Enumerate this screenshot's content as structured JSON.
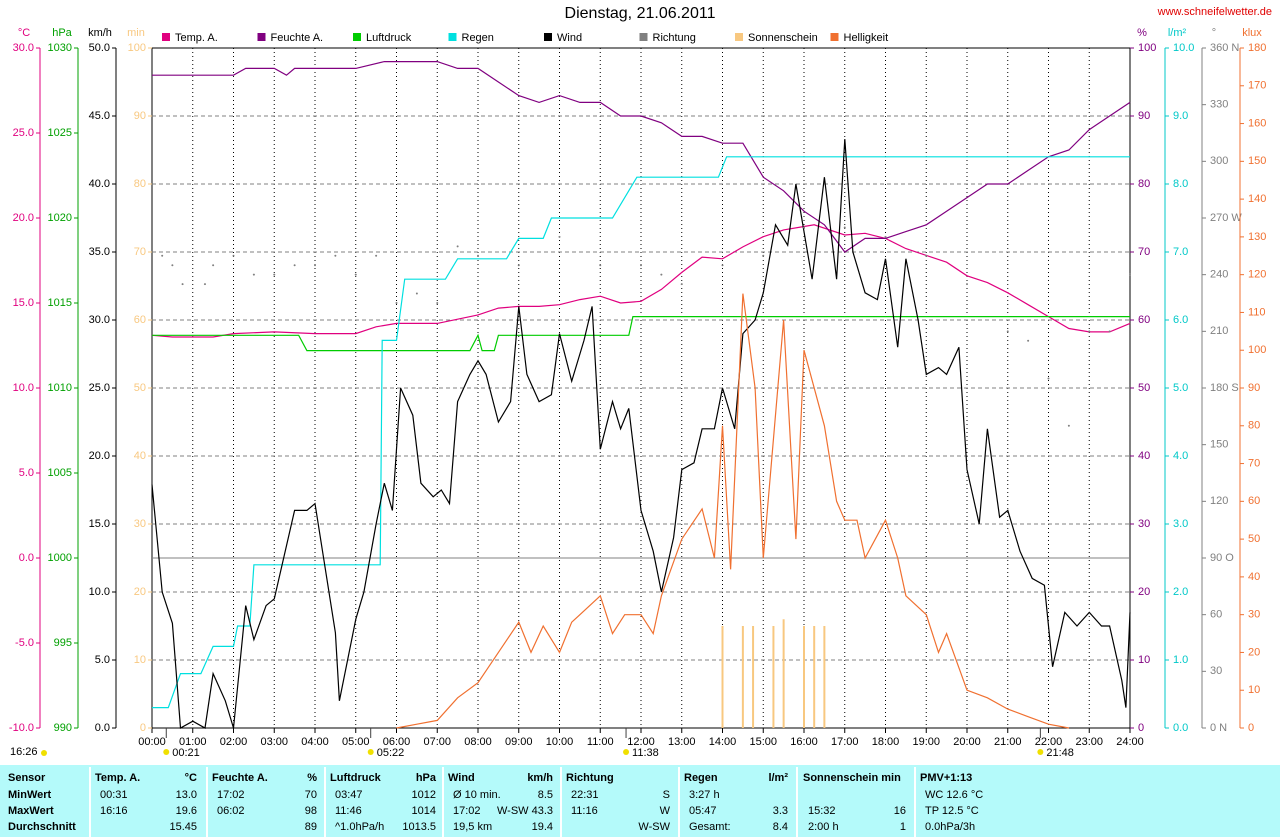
{
  "chart_data": {
    "type": "line",
    "title": "Dienstag, 21.06.2011",
    "source": "www.schneifelwetter.de",
    "xlim": [
      0,
      24
    ],
    "xticks": [
      {
        "value": 0,
        "label": "00:00"
      },
      {
        "value": 1,
        "label": "01:00"
      },
      {
        "value": 2,
        "label": "02:00"
      },
      {
        "value": 3,
        "label": "03:00"
      },
      {
        "value": 4,
        "label": "04:00"
      },
      {
        "value": 5,
        "label": "05:00"
      },
      {
        "value": 6,
        "label": "06:00"
      },
      {
        "value": 7,
        "label": "07:00"
      },
      {
        "value": 8,
        "label": "08:00"
      },
      {
        "value": 9,
        "label": "09:00"
      },
      {
        "value": 10,
        "label": "10:00"
      },
      {
        "value": 11,
        "label": "11:00"
      },
      {
        "value": 12,
        "label": "12:00"
      },
      {
        "value": 13,
        "label": "13:00"
      },
      {
        "value": 14,
        "label": "14:00"
      },
      {
        "value": 15,
        "label": "15:00"
      },
      {
        "value": 16,
        "label": "16:00"
      },
      {
        "value": 17,
        "label": "17:00"
      },
      {
        "value": 18,
        "label": "18:00"
      },
      {
        "value": 19,
        "label": "19:00"
      },
      {
        "value": 20,
        "label": "20:00"
      },
      {
        "value": 21,
        "label": "21:00"
      },
      {
        "value": 22,
        "label": "22:00"
      },
      {
        "value": 23,
        "label": "23:00"
      },
      {
        "value": 24,
        "label": "24:00"
      }
    ],
    "axes": [
      {
        "id": "temp",
        "unit": "°C",
        "side": "left",
        "color": "#e0007f",
        "zero_line": true,
        "lim": [
          -10,
          30
        ],
        "ticks": [
          {
            "value": -10,
            "label": "-10.0"
          },
          {
            "value": -5,
            "label": "-5.0"
          },
          {
            "value": 0,
            "label": "0.0"
          },
          {
            "value": 5,
            "label": "5.0"
          },
          {
            "value": 10,
            "label": "10.0"
          },
          {
            "value": 15,
            "label": "15.0"
          },
          {
            "value": 20,
            "label": "20.0"
          },
          {
            "value": 25,
            "label": "25.0"
          },
          {
            "value": 30,
            "label": "30.0"
          }
        ]
      },
      {
        "id": "hpa",
        "unit": "hPa",
        "side": "left",
        "color": "#00a000",
        "lim": [
          990,
          1030
        ],
        "ticks": [
          990,
          995,
          1000,
          1005,
          1010,
          1015,
          1020,
          1025,
          1030
        ]
      },
      {
        "id": "kmh",
        "unit": "km/h",
        "side": "left",
        "color": "#000000",
        "grid": true,
        "lim": [
          0,
          50
        ],
        "ticks": [
          {
            "value": 0,
            "label": "0.0"
          },
          {
            "value": 5,
            "label": "5.0"
          },
          {
            "value": 10,
            "label": "10.0"
          },
          {
            "value": 15,
            "label": "15.0"
          },
          {
            "value": 20,
            "label": "20.0"
          },
          {
            "value": 25,
            "label": "25.0"
          },
          {
            "value": 30,
            "label": "30.0"
          },
          {
            "value": 35,
            "label": "35.0"
          },
          {
            "value": 40,
            "label": "40.0"
          },
          {
            "value": 45,
            "label": "45.0"
          },
          {
            "value": 50,
            "label": "50.0"
          }
        ]
      },
      {
        "id": "min",
        "unit": "min",
        "side": "left",
        "color": "#f8c880",
        "lim": [
          0,
          100
        ],
        "ticks": [
          0,
          10,
          20,
          30,
          40,
          50,
          60,
          70,
          80,
          90,
          100
        ]
      },
      {
        "id": "pct",
        "unit": "%",
        "side": "right",
        "color": "#800080",
        "lim": [
          0,
          100
        ],
        "ticks": [
          0,
          10,
          20,
          30,
          40,
          50,
          60,
          70,
          80,
          90,
          100
        ]
      },
      {
        "id": "lm2",
        "unit": "l/m²",
        "side": "right",
        "color": "#00c8c8",
        "lim": [
          0,
          10
        ],
        "ticks": [
          {
            "value": 0,
            "label": "0.0"
          },
          {
            "value": 1,
            "label": "1.0"
          },
          {
            "value": 2,
            "label": "2.0"
          },
          {
            "value": 3,
            "label": "3.0"
          },
          {
            "value": 4,
            "label": "4.0"
          },
          {
            "value": 5,
            "label": "5.0"
          },
          {
            "value": 6,
            "label": "6.0"
          },
          {
            "value": 7,
            "label": "7.0"
          },
          {
            "value": 8,
            "label": "8.0"
          },
          {
            "value": 9,
            "label": "9.0"
          },
          {
            "value": 10,
            "label": "10.0"
          }
        ]
      },
      {
        "id": "deg",
        "unit": "°",
        "side": "right",
        "color": "#808080",
        "lim": [
          0,
          360
        ],
        "ticks": [
          {
            "value": 0,
            "label": "0 N"
          },
          30,
          60,
          {
            "value": 90,
            "label": "90 O"
          },
          120,
          150,
          {
            "value": 180,
            "label": "180 S"
          },
          210,
          240,
          {
            "value": 270,
            "label": "270 W"
          },
          300,
          330,
          {
            "value": 360,
            "label": "360 N"
          }
        ]
      },
      {
        "id": "klux",
        "unit": "klux",
        "side": "right",
        "color": "#f07030",
        "lim": [
          0,
          180
        ],
        "ticks": [
          0,
          10,
          20,
          30,
          40,
          50,
          60,
          70,
          80,
          90,
          100,
          110,
          120,
          130,
          140,
          150,
          160,
          170,
          180
        ]
      }
    ],
    "series": [
      {
        "name": "Temp. A.",
        "color": "#e0007f",
        "axis": "temp",
        "style": "line",
        "x": [
          0,
          0.5,
          1.5,
          2,
          3,
          4,
          5,
          5.5,
          6,
          7,
          8,
          8.5,
          9,
          9.5,
          10,
          10.5,
          11,
          11.5,
          12,
          12.5,
          13,
          13.5,
          14,
          14.5,
          15,
          15.5,
          16,
          16.25,
          17,
          17.5,
          18,
          18.5,
          19,
          19.5,
          20,
          20.5,
          21,
          21.5,
          22,
          22.5,
          23,
          23.5,
          24
        ],
        "values": [
          13.1,
          13.0,
          13.0,
          13.2,
          13.3,
          13.2,
          13.2,
          13.6,
          13.8,
          13.8,
          14.3,
          14.7,
          14.8,
          14.8,
          14.9,
          15.2,
          15.4,
          15.0,
          15.1,
          15.8,
          16.8,
          17.7,
          17.6,
          18.3,
          18.9,
          19.3,
          19.5,
          19.6,
          19.0,
          19.1,
          18.8,
          18.2,
          17.8,
          17.4,
          16.6,
          16.2,
          15.6,
          14.9,
          14.2,
          13.5,
          13.3,
          13.3,
          13.8
        ]
      },
      {
        "name": "Feuchte A.",
        "color": "#800080",
        "axis": "pct",
        "style": "line",
        "x": [
          0,
          2,
          2.3,
          3,
          3.3,
          3.5,
          5,
          5.7,
          7,
          7.5,
          8,
          8.5,
          9,
          9.5,
          10,
          10.5,
          11,
          11.5,
          12,
          12.5,
          13,
          13.5,
          14,
          14.5,
          15,
          15.5,
          16,
          16.5,
          17,
          17.5,
          18,
          18.5,
          19,
          19.5,
          20,
          20.5,
          21,
          21.5,
          22,
          22.5,
          23,
          23.5,
          24
        ],
        "values": [
          96,
          96,
          97,
          97,
          96,
          97,
          97,
          98,
          98,
          97,
          97,
          95,
          93,
          92,
          93,
          92,
          92,
          90,
          90,
          89,
          87,
          87,
          86,
          86,
          81,
          79,
          76,
          74,
          70,
          72,
          72,
          73,
          74,
          76,
          78,
          80,
          80,
          82,
          84,
          85,
          88,
          90,
          92
        ]
      },
      {
        "name": "Luftdruck",
        "color": "#00cc00",
        "axis": "hpa",
        "style": "line",
        "x": [
          0,
          3.6,
          3.8,
          7.8,
          8,
          8.1,
          8.4,
          8.5,
          11.7,
          11.8,
          24
        ],
        "values": [
          1013.1,
          1013.1,
          1012.2,
          1012.2,
          1013.1,
          1012.2,
          1012.2,
          1013.1,
          1013.1,
          1014.2,
          1014.2
        ]
      },
      {
        "name": "Regen",
        "color": "#00e0e0",
        "axis": "lm2",
        "style": "line",
        "x": [
          0,
          0.4,
          0.7,
          1.2,
          1.5,
          2,
          2.1,
          2.4,
          2.5,
          5.6,
          5.65,
          6.0,
          6.2,
          7.2,
          7.5,
          8.7,
          9.0,
          9.6,
          9.8,
          11.3,
          11.9,
          13.9,
          14.1,
          24
        ],
        "values": [
          0.3,
          0.3,
          0.8,
          0.8,
          1.2,
          1.2,
          1.5,
          1.5,
          2.4,
          2.4,
          5.7,
          5.7,
          6.6,
          6.6,
          6.9,
          6.9,
          7.2,
          7.2,
          7.5,
          7.5,
          8.1,
          8.1,
          8.4,
          8.4
        ]
      },
      {
        "name": "Wind",
        "color": "#000000",
        "axis": "kmh",
        "style": "line",
        "x": [
          0,
          0.25,
          0.5,
          0.7,
          1,
          1.3,
          1.5,
          1.8,
          2,
          2.3,
          2.5,
          2.8,
          3,
          3.5,
          3.8,
          4,
          4.5,
          4.6,
          5,
          5.2,
          5.5,
          5.7,
          5.9,
          6.1,
          6.4,
          6.6,
          6.9,
          7.1,
          7.3,
          7.5,
          7.8,
          8,
          8.2,
          8.5,
          8.8,
          9,
          9.2,
          9.5,
          9.8,
          10,
          10.3,
          10.6,
          10.8,
          11,
          11.3,
          11.5,
          11.7,
          12,
          12.3,
          12.5,
          12.8,
          13,
          13.3,
          13.5,
          13.8,
          14,
          14.3,
          14.5,
          14.8,
          15,
          15.3,
          15.6,
          15.8,
          16.2,
          16.5,
          16.8,
          17,
          17.2,
          17.5,
          17.8,
          18,
          18.3,
          18.5,
          18.8,
          19,
          19.3,
          19.5,
          19.8,
          20,
          20.3,
          20.5,
          20.8,
          21,
          21.3,
          21.6,
          21.9,
          22.1,
          22.4,
          22.7,
          23,
          23.3,
          23.5,
          23.8,
          23.9,
          24
        ],
        "values": [
          17.9,
          10,
          7.7,
          0,
          0.5,
          0,
          4,
          2,
          0,
          9,
          6.5,
          9,
          9.5,
          16,
          16,
          16.5,
          7,
          2,
          8,
          10,
          15,
          18,
          16,
          25,
          23,
          18,
          17,
          17.5,
          16.5,
          24,
          26,
          27,
          26,
          22.5,
          24,
          31,
          26,
          24,
          24.5,
          29,
          25.5,
          28.5,
          31,
          20.5,
          24,
          22,
          23.5,
          16,
          13,
          10,
          14,
          19,
          19.5,
          22,
          22,
          25,
          22,
          29,
          30,
          32,
          37,
          35.5,
          40,
          33,
          40.5,
          33,
          43.3,
          35,
          32,
          31.5,
          34.5,
          28,
          34.5,
          30,
          26,
          26.5,
          26,
          28,
          19,
          15,
          22,
          15.5,
          16,
          13,
          11,
          10.5,
          4.5,
          8.5,
          7.5,
          8.5,
          7.5,
          7.5,
          3.5,
          1.5,
          8.5
        ]
      },
      {
        "name": "Richtung",
        "color": "#808080",
        "axis": "deg",
        "style": "dots",
        "x": [
          0.25,
          0.5,
          0.75,
          1.3,
          1.5,
          2,
          2.5,
          3,
          3.5,
          4,
          4.5,
          5,
          5.5,
          6,
          6.5,
          7,
          7.5,
          8,
          9,
          10,
          11,
          12,
          12.5,
          13,
          14,
          15,
          16,
          17,
          18,
          19,
          20,
          21,
          21.5,
          22,
          22.5,
          23,
          23.5,
          24
        ],
        "values": [
          250,
          245,
          235,
          235,
          245,
          250,
          240,
          240,
          245,
          245,
          250,
          240,
          250,
          225,
          230,
          225,
          255,
          250,
          245,
          260,
          245,
          245,
          240,
          235,
          245,
          250,
          265,
          265,
          260,
          250,
          235,
          210,
          205,
          185,
          160,
          210,
          210,
          240
        ]
      },
      {
        "name": "Sonnenschein",
        "color": "#f8c880",
        "axis": "min",
        "style": "bars",
        "x": [
          14,
          14.5,
          14.75,
          15.25,
          15.5,
          16,
          16.25,
          16.5
        ],
        "values": [
          15,
          15,
          15,
          15,
          16,
          15,
          15,
          15
        ]
      },
      {
        "name": "Helligkeit",
        "color": "#f07030",
        "axis": "klux",
        "style": "line",
        "x": [
          6,
          6.5,
          7,
          7.5,
          8,
          8.5,
          9,
          9.3,
          9.6,
          10,
          10.3,
          10.5,
          11,
          11.3,
          11.6,
          12,
          12.3,
          12.5,
          13,
          13.5,
          13.8,
          14,
          14.2,
          14.5,
          14.8,
          15,
          15.5,
          15.8,
          16,
          16.5,
          16.8,
          17,
          17.3,
          17.5,
          18,
          18.3,
          18.5,
          19,
          19.3,
          19.5,
          20,
          20.5,
          21,
          21.5,
          22,
          22.5
        ],
        "values": [
          0,
          1,
          2,
          8,
          12,
          20,
          28,
          20,
          27,
          20,
          28,
          30,
          35,
          25,
          30,
          30,
          25,
          35,
          50,
          58,
          45,
          80,
          42,
          115,
          90,
          45,
          108,
          50,
          100,
          80,
          60,
          55,
          55,
          45,
          55,
          45,
          35,
          30,
          20,
          25,
          10,
          8,
          5,
          3,
          1,
          0
        ]
      }
    ],
    "day_length": "16:26",
    "markers": [
      {
        "label": "00:21",
        "x": 0.35
      },
      {
        "label": "05:22",
        "x": 5.367
      },
      {
        "label": "11:38",
        "x": 11.633
      },
      {
        "label": "21:48",
        "x": 21.8
      }
    ]
  },
  "table": {
    "header": [
      {
        "l": "Sensor"
      },
      {
        "l": "Temp. A.",
        "r": "°C"
      },
      {
        "l": "Feuchte A.",
        "r": "%"
      },
      {
        "l": "Luftdruck",
        "r": "hPa"
      },
      {
        "l": "Wind",
        "r": "km/h"
      },
      {
        "l": "Richtung"
      },
      {
        "l": "Regen",
        "r": "l/m²"
      },
      {
        "l": "Sonnenschein min"
      },
      {
        "l": "PMV+1:13"
      }
    ],
    "rows": [
      [
        {
          "l": "MinWert"
        },
        {
          "l": "00:31",
          "r": "13.0"
        },
        {
          "l": "17:02",
          "r": "70"
        },
        {
          "l": "03:47",
          "r": "1012"
        },
        {
          "l": "Ø 10 min.",
          "r": "8.5"
        },
        {
          "l": "22:31",
          "r": "S"
        },
        {
          "l": "3:27 h"
        },
        null,
        {
          "l": "WC 12.6 °C"
        }
      ],
      [
        {
          "l": "MaxWert"
        },
        {
          "l": "16:16",
          "r": "19.6"
        },
        {
          "l": "06:02",
          "r": "98"
        },
        {
          "l": "11:46",
          "r": "1014"
        },
        {
          "l": "17:02",
          "r": "W-SW 43.3"
        },
        {
          "l": "11:16",
          "r": "W"
        },
        {
          "l": "05:47",
          "r": "3.3"
        },
        {
          "l": "15:32",
          "r": "16"
        },
        {
          "l": "TP 12.5 °C"
        }
      ],
      [
        {
          "l": "Durchschnitt"
        },
        {
          "r": "15.45"
        },
        {
          "r": "89"
        },
        {
          "l": "^1.0hPa/h",
          "r": "1013.5"
        },
        {
          "l": "19,5 km",
          "r": "19.4"
        },
        {
          "r": "W-SW"
        },
        {
          "l": "Gesamt:",
          "r": "8.4"
        },
        {
          "l": "2:00 h",
          "r": "1"
        },
        {
          "l": "0.0hPa/3h"
        }
      ]
    ]
  }
}
